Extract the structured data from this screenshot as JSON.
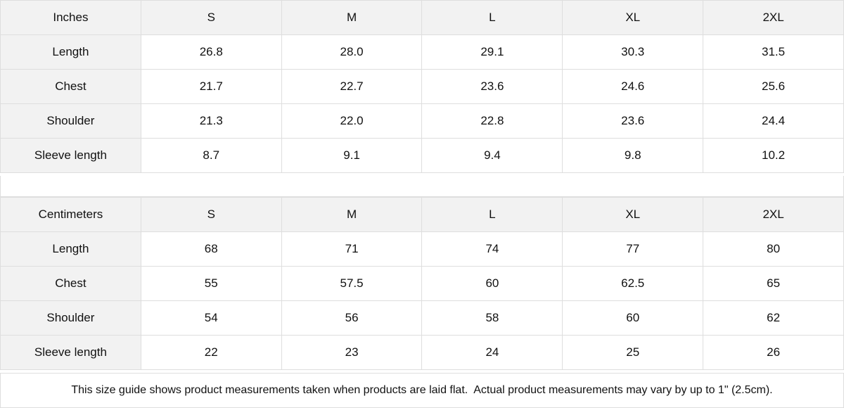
{
  "tables": [
    {
      "unit": "Inches",
      "sizes": [
        "S",
        "M",
        "L",
        "XL",
        "2XL"
      ],
      "rows": [
        {
          "label": "Length",
          "values": [
            "26.8",
            "28.0",
            "29.1",
            "30.3",
            "31.5"
          ]
        },
        {
          "label": "Chest",
          "values": [
            "21.7",
            "22.7",
            "23.6",
            "24.6",
            "25.6"
          ]
        },
        {
          "label": "Shoulder",
          "values": [
            "21.3",
            "22.0",
            "22.8",
            "23.6",
            "24.4"
          ]
        },
        {
          "label": "Sleeve length",
          "values": [
            "8.7",
            "9.1",
            "9.4",
            "9.8",
            "10.2"
          ]
        }
      ]
    },
    {
      "unit": "Centimeters",
      "sizes": [
        "S",
        "M",
        "L",
        "XL",
        "2XL"
      ],
      "rows": [
        {
          "label": "Length",
          "values": [
            "68",
            "71",
            "74",
            "77",
            "80"
          ]
        },
        {
          "label": "Chest",
          "values": [
            "55",
            "57.5",
            "60",
            "62.5",
            "65"
          ]
        },
        {
          "label": "Shoulder",
          "values": [
            "54",
            "56",
            "58",
            "60",
            "62"
          ]
        },
        {
          "label": "Sleeve length",
          "values": [
            "22",
            "23",
            "24",
            "25",
            "26"
          ]
        }
      ]
    }
  ],
  "note": "This size guide shows product measurements taken when products are laid flat.  Actual product measurements may vary by up to 1\" (2.5cm).",
  "colors": {
    "header_bg": "#f2f2f2",
    "border": "#dedede",
    "text": "#111111"
  }
}
